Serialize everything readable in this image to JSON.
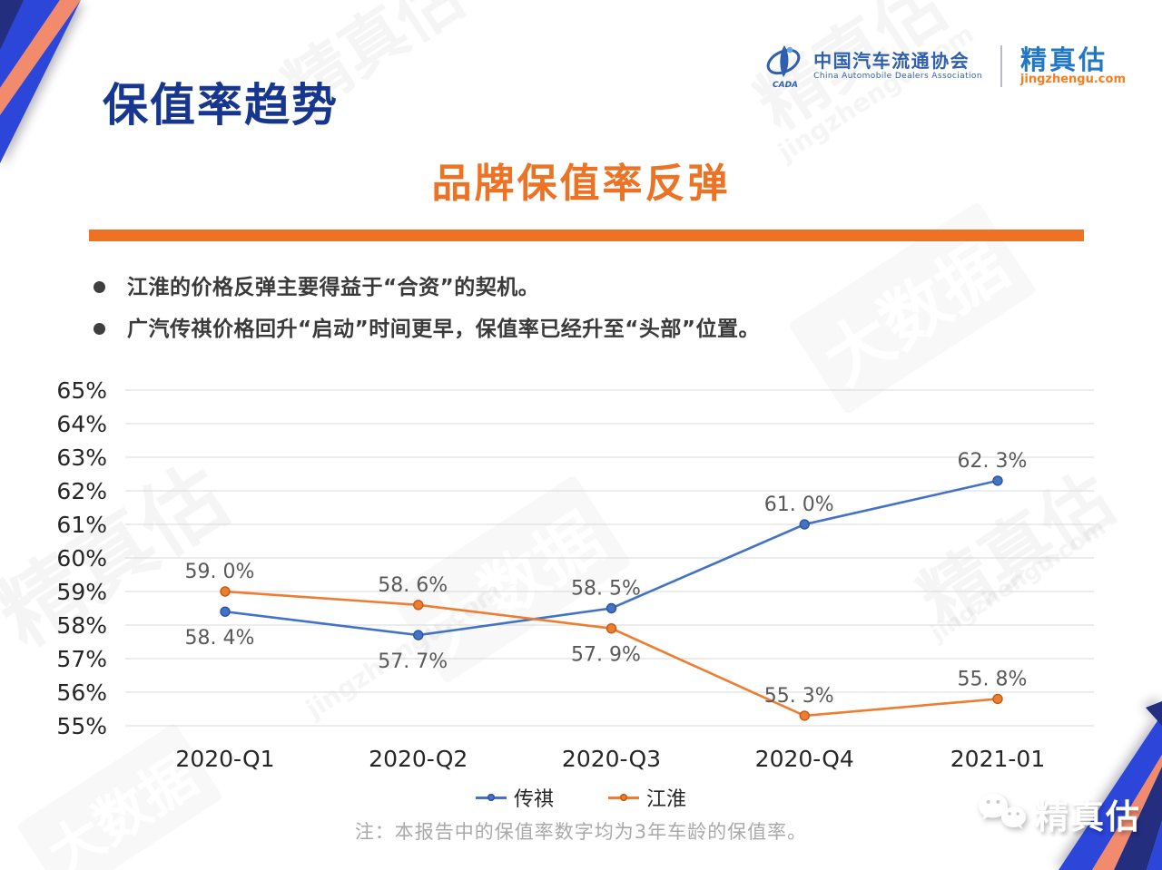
{
  "page": {
    "title": "保值率趋势",
    "section_title": "品牌保值率反弹",
    "bullets": [
      "江淮的价格反弹主要得益于“合资”的契机。",
      "广汽传祺价格回升“启动”时间更早，保值率已经升至“头部”位置。"
    ],
    "footnote": "注：本报告中的保值率数字均为3年车龄的保值率。"
  },
  "header": {
    "cada": {
      "emblem_text": "CADA",
      "name_cn": "中国汽车流通协会",
      "name_en": "China Automobile Dealers Association"
    },
    "brand": {
      "name": "精真估",
      "domain": "jingzhengu.com"
    }
  },
  "footer_brand": {
    "name": "精真估"
  },
  "watermarks": [
    "精真估",
    "jingzhengu.com",
    "大数据"
  ],
  "colors": {
    "title_blue": "#17368f",
    "accent_orange": "#ed7224",
    "text_dark": "#3a3a3a",
    "footnote_gray": "#a9a9a9",
    "grid_line": "#d9d9d9",
    "brand_blue": "#2278c6",
    "brand_orange": "#f57e20",
    "cada_blue": "#2f5fae",
    "decor_navy": "#232e7e",
    "decor_blue": "#2b46d9",
    "decor_salmon": "#f28b6d"
  },
  "chart_data": {
    "type": "line",
    "title": "",
    "xlabel": "",
    "ylabel": "",
    "categories": [
      "2020-Q1",
      "2020-Q2",
      "2020-Q3",
      "2020-Q4",
      "2021-01"
    ],
    "series": [
      {
        "name": "传祺",
        "color": "#4472c4",
        "marker_border": "#2e549c",
        "values": [
          58.4,
          57.7,
          58.5,
          61.0,
          62.3
        ],
        "point_labels": [
          "58. 4%",
          "57. 7%",
          "58. 5%",
          "61. 0%",
          "62. 3%"
        ],
        "label_positions": [
          "below",
          "below",
          "above",
          "above",
          "above"
        ]
      },
      {
        "name": "江淮",
        "color": "#ed7d31",
        "marker_border": "#c55a11",
        "values": [
          59.0,
          58.6,
          57.9,
          55.3,
          55.8
        ],
        "point_labels": [
          "59. 0%",
          "58. 6%",
          "57. 9%",
          "55. 3%",
          "55. 8%"
        ],
        "label_positions": [
          "above",
          "above",
          "below",
          "above",
          "above"
        ]
      }
    ],
    "ylim": [
      55,
      65
    ],
    "ytick_step": 1,
    "yticks": [
      "65%",
      "64%",
      "63%",
      "62%",
      "61%",
      "60%",
      "59%",
      "58%",
      "57%",
      "56%",
      "55%"
    ],
    "grid": true,
    "legend_position": "bottom"
  }
}
